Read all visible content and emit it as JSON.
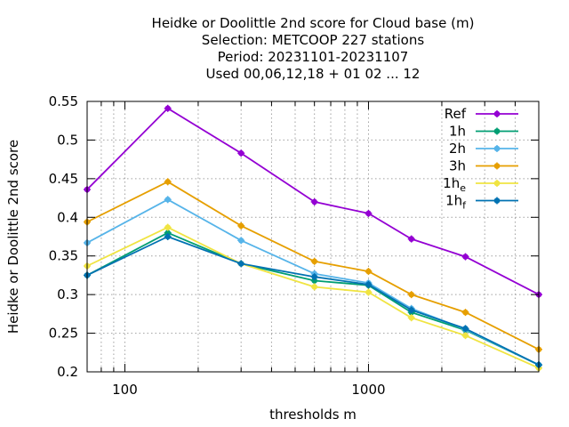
{
  "chart_data": {
    "type": "line",
    "title_lines": [
      "Heidke or Doolittle 2nd score  for Cloud base (m)",
      "Selection: METCOOP    227 stations",
      "Period: 20231101-20231107",
      "Used  00,06,12,18 + 01 02 ... 12"
    ],
    "xlabel": "thresholds m",
    "ylabel": "Heidke or Doolittle 2nd score",
    "x_scale": "log",
    "xlim": [
      70,
      5000
    ],
    "ylim": [
      0.2,
      0.55
    ],
    "x_ticks": [
      100,
      1000
    ],
    "x_tick_labels": [
      "100",
      "1000"
    ],
    "y_ticks": [
      0.2,
      0.25,
      0.3,
      0.35,
      0.4,
      0.45,
      0.5,
      0.55
    ],
    "y_tick_labels": [
      "0.2",
      "0.25",
      "0.3",
      "0.35",
      "0.4",
      "0.45",
      "0.5",
      "0.55"
    ],
    "grid": true,
    "legend_position": "top-right",
    "x": [
      70,
      150,
      300,
      600,
      1000,
      1500,
      2500,
      5000
    ],
    "series": [
      {
        "name": "Ref",
        "name_sub": "",
        "color": "#9400d3",
        "values": [
          0.436,
          0.541,
          0.483,
          0.42,
          0.405,
          0.372,
          0.349,
          0.3
        ]
      },
      {
        "name": "1h",
        "name_sub": "",
        "color": "#009e73",
        "values": [
          0.325,
          0.38,
          0.34,
          0.318,
          0.312,
          0.277,
          0.254,
          0.209
        ]
      },
      {
        "name": "2h",
        "name_sub": "",
        "color": "#56b4e9",
        "values": [
          0.367,
          0.423,
          0.37,
          0.327,
          0.315,
          0.282,
          0.255,
          0.209
        ]
      },
      {
        "name": "3h",
        "name_sub": "",
        "color": "#e69f00",
        "values": [
          0.394,
          0.446,
          0.389,
          0.343,
          0.33,
          0.3,
          0.277,
          0.229
        ]
      },
      {
        "name": "1h",
        "name_sub": "e",
        "color": "#f0e442",
        "values": [
          0.337,
          0.387,
          0.34,
          0.31,
          0.303,
          0.27,
          0.247,
          0.205
        ]
      },
      {
        "name": "1h",
        "name_sub": "f",
        "color": "#0072b2",
        "values": [
          0.325,
          0.375,
          0.34,
          0.323,
          0.313,
          0.28,
          0.256,
          0.209
        ]
      }
    ]
  }
}
